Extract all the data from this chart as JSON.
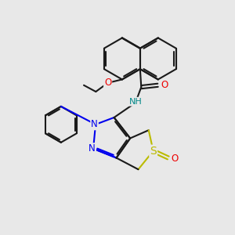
{
  "background_color": "#e8e8e8",
  "bond_color": "#1a1a1a",
  "bond_width": 1.5,
  "dpi": 100,
  "figsize": [
    3.0,
    3.0
  ],
  "atom_colors": {
    "N": "#0000ee",
    "O": "#ee0000",
    "S": "#bbbb00",
    "NH": "#008888",
    "C": "#1a1a1a"
  },
  "font_size_atom": 8.5
}
